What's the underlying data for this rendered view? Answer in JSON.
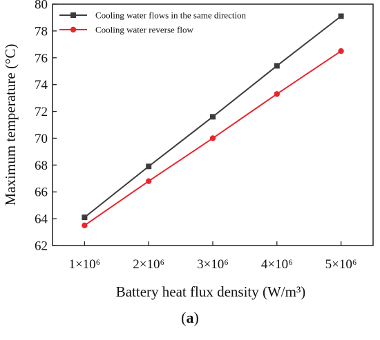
{
  "chart_data": {
    "type": "line",
    "x": [
      1000000,
      2000000,
      3000000,
      4000000,
      5000000
    ],
    "x_tick_labels": [
      "1×10⁶",
      "2×10⁶",
      "3×10⁶",
      "4×10⁶",
      "5×10⁶"
    ],
    "xlabel": "Battery heat flux density (W/m³)",
    "ylabel": "Maximum temperature (°C)",
    "ylim": [
      62,
      80
    ],
    "yticks": [
      62,
      64,
      66,
      68,
      70,
      72,
      74,
      76,
      78,
      80
    ],
    "xlim": [
      500000,
      5500000
    ],
    "grid": false,
    "legend_position": "top-left",
    "series": [
      {
        "name": "Cooling water flows in the same direction",
        "values": [
          64.1,
          67.9,
          71.6,
          75.4,
          79.1
        ],
        "color": "#3c3c3c",
        "marker": "square"
      },
      {
        "name": "Cooling water reverse flow",
        "values": [
          63.5,
          66.8,
          70.0,
          73.3,
          76.5
        ],
        "color": "#e8262e",
        "marker": "circle"
      }
    ]
  },
  "caption": {
    "open": "(",
    "letter": "a",
    "close": ")"
  }
}
